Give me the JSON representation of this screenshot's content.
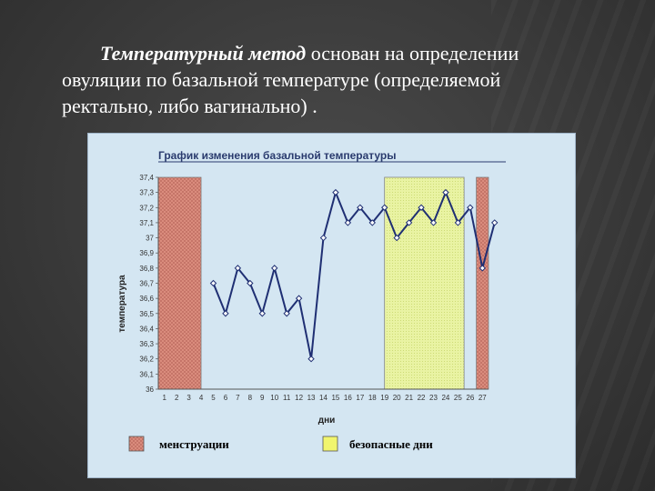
{
  "slide": {
    "lead": "Температурный метод",
    "text_line1": " основан на определении",
    "text_line2": "овуляции по базальной температуре (определяемой",
    "text_line3": "ректально, либо вагинально) ."
  },
  "chart_data": {
    "type": "line",
    "title": "График изменения базальной температуры",
    "xlabel": "дни",
    "ylabel": "температура",
    "ylim": [
      36,
      37.4
    ],
    "yticks": [
      "37,4",
      "37,3",
      "37,2",
      "37,1",
      "37",
      "36,9",
      "36,8",
      "36,7",
      "36,6",
      "36,5",
      "36,4",
      "36,3",
      "36,2",
      "36,1",
      "36"
    ],
    "categories": [
      "1",
      "2",
      "3",
      "4",
      "5",
      "6",
      "7",
      "8",
      "9",
      "10",
      "11",
      "12",
      "13",
      "14",
      "15",
      "16",
      "17",
      "18",
      "19",
      "20",
      "21",
      "22",
      "23",
      "24",
      "25",
      "26",
      "27"
    ],
    "series": [
      {
        "color": "#1f2f73",
        "x": [
          5,
          6,
          7,
          8,
          9,
          10,
          11,
          12,
          13,
          14,
          15,
          16,
          17,
          18,
          19,
          20,
          21,
          22,
          23,
          24,
          25,
          26,
          27,
          28
        ],
        "values": [
          36.7,
          36.5,
          36.8,
          36.7,
          36.5,
          36.8,
          36.5,
          36.6,
          36.2,
          37.0,
          37.3,
          37.1,
          37.2,
          37.1,
          37.2,
          37.0,
          37.1,
          37.2,
          37.1,
          37.3,
          37.1,
          37.2,
          36.8,
          37.1
        ]
      }
    ],
    "bands": [
      {
        "kind": "menstruation",
        "from": 0.5,
        "to": 4,
        "color": "#dd8f80"
      },
      {
        "kind": "safe",
        "from": 19,
        "to": 25.5,
        "color": "#e8f3a0"
      },
      {
        "kind": "menstruation",
        "from": 26.5,
        "to": 27.5,
        "color": "#dd8f80"
      }
    ],
    "legend": [
      {
        "label": "менструации",
        "color": "#dd8f80"
      },
      {
        "label": "безопасные  дни",
        "color": "#f1f56e"
      }
    ],
    "grid": false
  }
}
